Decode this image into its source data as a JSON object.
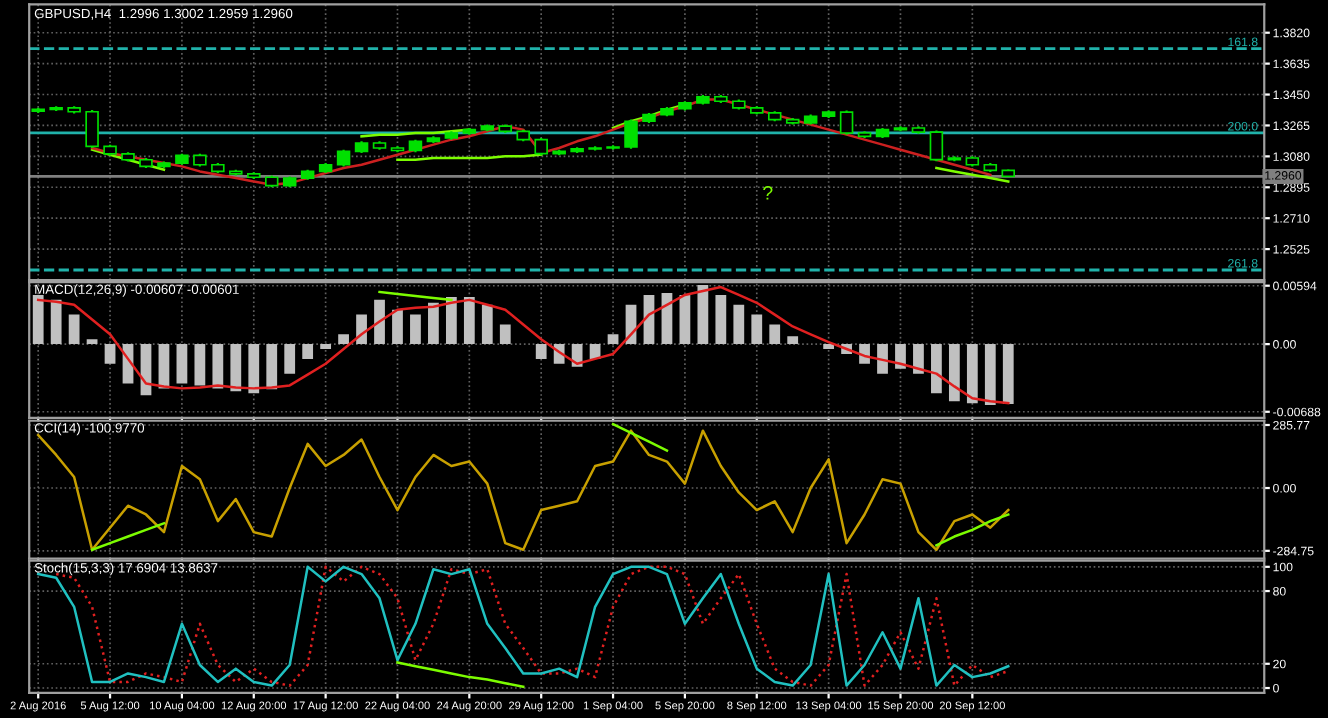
{
  "chart_data": [
    {
      "type": "candlestick",
      "title": "GBPUSD,H4  1.2996 1.3002 1.2959 1.2960",
      "color": "#00e000",
      "categories": [
        null,
        null,
        null,
        null,
        null,
        null,
        null,
        null,
        null,
        null,
        null,
        null,
        null,
        null,
        null,
        null,
        null,
        null,
        null,
        null,
        null,
        null,
        null,
        null,
        null,
        null,
        null,
        null,
        null,
        null,
        null,
        null,
        null,
        null,
        null,
        null,
        null,
        null,
        null,
        null,
        null,
        null,
        null,
        null,
        null,
        null,
        null,
        null,
        null,
        null,
        null,
        null,
        null,
        null,
        null
      ],
      "ohlc": [
        [
          1.335,
          1.3371,
          1.334,
          1.3361
        ],
        [
          1.3361,
          1.338,
          1.3351,
          1.337
        ],
        [
          1.337,
          1.338,
          1.3337,
          1.3347
        ],
        [
          1.3347,
          1.3357,
          1.313,
          1.314
        ],
        [
          1.314,
          1.315,
          1.3085,
          1.3095
        ],
        [
          1.3095,
          1.3105,
          1.305,
          1.306
        ],
        [
          1.306,
          1.307,
          1.301,
          1.302
        ],
        [
          1.302,
          1.305,
          1.301,
          1.304
        ],
        [
          1.304,
          1.3096,
          1.303,
          1.3086
        ],
        [
          1.3086,
          1.3096,
          1.302,
          1.303
        ],
        [
          1.303,
          1.304,
          1.298,
          1.299
        ],
        [
          1.299,
          1.3,
          1.2965,
          1.2975
        ],
        [
          1.2975,
          1.2985,
          1.2945,
          1.2955
        ],
        [
          1.2955,
          1.2965,
          1.2895,
          1.2905
        ],
        [
          1.2905,
          1.296,
          1.2895,
          1.295
        ],
        [
          1.295,
          1.3,
          1.294,
          1.299
        ],
        [
          1.299,
          1.304,
          1.298,
          1.303
        ],
        [
          1.303,
          1.312,
          1.302,
          1.311
        ],
        [
          1.311,
          1.317,
          1.31,
          1.316
        ],
        [
          1.316,
          1.317,
          1.312,
          1.313
        ],
        [
          1.313,
          1.314,
          1.3105,
          1.3115
        ],
        [
          1.3115,
          1.318,
          1.3105,
          1.317
        ],
        [
          1.317,
          1.32,
          1.316,
          1.319
        ],
        [
          1.319,
          1.323,
          1.318,
          1.322
        ],
        [
          1.322,
          1.325,
          1.321,
          1.324
        ],
        [
          1.324,
          1.3271,
          1.323,
          1.3261
        ],
        [
          1.3261,
          1.3271,
          1.322,
          1.323
        ],
        [
          1.323,
          1.324,
          1.317,
          1.318
        ],
        [
          1.318,
          1.319,
          1.3086,
          1.3096
        ],
        [
          1.3096,
          1.312,
          1.3086,
          1.311
        ],
        [
          1.311,
          1.3135,
          1.31,
          1.3125
        ],
        [
          1.3125,
          1.314,
          1.3115,
          1.313
        ],
        [
          1.313,
          1.3146,
          1.312,
          1.3136
        ],
        [
          1.3136,
          1.33,
          1.3126,
          1.329
        ],
        [
          1.329,
          1.334,
          1.328,
          1.333
        ],
        [
          1.333,
          1.3375,
          1.332,
          1.3365
        ],
        [
          1.3365,
          1.341,
          1.3355,
          1.34
        ],
        [
          1.34,
          1.3447,
          1.339,
          1.3437
        ],
        [
          1.3437,
          1.3447,
          1.34,
          1.341
        ],
        [
          1.341,
          1.342,
          1.336,
          1.337
        ],
        [
          1.337,
          1.338,
          1.333,
          1.334
        ],
        [
          1.334,
          1.335,
          1.329,
          1.33
        ],
        [
          1.33,
          1.331,
          1.327,
          1.328
        ],
        [
          1.328,
          1.333,
          1.327,
          1.332
        ],
        [
          1.332,
          1.3355,
          1.331,
          1.3345
        ],
        [
          1.3345,
          1.3355,
          1.321,
          1.322
        ],
        [
          1.322,
          1.323,
          1.319,
          1.32
        ],
        [
          1.32,
          1.325,
          1.319,
          1.324
        ],
        [
          1.324,
          1.326,
          1.323,
          1.325
        ],
        [
          1.325,
          1.326,
          1.3215,
          1.3225
        ],
        [
          1.3225,
          1.3235,
          1.3051,
          1.3061
        ],
        [
          1.3061,
          1.308,
          1.3051,
          1.307
        ],
        [
          1.307,
          1.308,
          1.302,
          1.303
        ],
        [
          1.303,
          1.304,
          1.2986,
          1.2996
        ],
        [
          1.2996,
          1.3002,
          1.2959,
          1.296
        ]
      ],
      "series": [
        {
          "type": "line",
          "color": "#7cfc00",
          "values": [
            null,
            null,
            null,
            1.312,
            1.309,
            1.306,
            1.303,
            1.3,
            null,
            null,
            null,
            null,
            null,
            null,
            null,
            null,
            null,
            null,
            null,
            null,
            null,
            null,
            null,
            null,
            null,
            null,
            null,
            null,
            null,
            null,
            null,
            null,
            null,
            null,
            null,
            null,
            null,
            null,
            null,
            null,
            null,
            null,
            null,
            null,
            null,
            null,
            null,
            null,
            null,
            null,
            null,
            null,
            null,
            null,
            null
          ]
        },
        {
          "type": "line",
          "color": "#7cfc00",
          "values": [
            null,
            null,
            null,
            null,
            null,
            null,
            null,
            null,
            null,
            null,
            null,
            null,
            null,
            null,
            null,
            null,
            null,
            null,
            1.32,
            1.321,
            1.321,
            1.322,
            1.322,
            1.323,
            1.324,
            null,
            null,
            null,
            null,
            null,
            null,
            null,
            null,
            null,
            null,
            null,
            null,
            null,
            null,
            null,
            null,
            null,
            null,
            null,
            null,
            null,
            null,
            null,
            null,
            null,
            null,
            null,
            null,
            null,
            null
          ]
        },
        {
          "type": "line",
          "color": "#7cfc00",
          "values": [
            null,
            null,
            null,
            null,
            null,
            null,
            null,
            null,
            null,
            null,
            null,
            null,
            null,
            null,
            null,
            null,
            null,
            null,
            null,
            null,
            1.306,
            1.306,
            1.307,
            1.307,
            1.307,
            1.307,
            1.308,
            1.308,
            1.309,
            null,
            null,
            null,
            null,
            null,
            null,
            null,
            null,
            null,
            null,
            null,
            null,
            null,
            null,
            null,
            null,
            null,
            null,
            null,
            null,
            null,
            null,
            null,
            null,
            null,
            null
          ]
        },
        {
          "type": "line",
          "color": "#7cfc00",
          "values": [
            null,
            null,
            null,
            null,
            null,
            null,
            null,
            null,
            null,
            null,
            null,
            null,
            null,
            null,
            null,
            null,
            null,
            null,
            null,
            null,
            null,
            null,
            null,
            null,
            null,
            null,
            null,
            null,
            null,
            null,
            null,
            null,
            1.325,
            1.329,
            1.332,
            1.336,
            1.339,
            null,
            null,
            null,
            null,
            null,
            null,
            null,
            null,
            null,
            null,
            null,
            null,
            null,
            null,
            null,
            null,
            null,
            null
          ]
        },
        {
          "type": "line",
          "color": "#7cfc00",
          "values": [
            null,
            null,
            null,
            null,
            null,
            null,
            null,
            null,
            null,
            null,
            null,
            null,
            null,
            null,
            null,
            null,
            null,
            null,
            null,
            null,
            null,
            null,
            null,
            null,
            null,
            null,
            null,
            null,
            null,
            null,
            null,
            null,
            null,
            null,
            null,
            null,
            null,
            null,
            null,
            null,
            null,
            null,
            null,
            null,
            null,
            null,
            null,
            null,
            null,
            null,
            1.301,
            1.299,
            1.297,
            1.295,
            1.293
          ]
        },
        {
          "type": "line",
          "color": "#cc2020",
          "values": [
            null,
            null,
            null,
            1.313,
            1.31,
            1.308,
            1.306,
            1.304,
            1.302,
            1.299,
            1.297,
            1.295,
            1.293,
            1.291,
            1.292,
            1.295,
            1.298,
            1.301,
            1.303,
            1.306,
            1.309,
            1.312,
            1.315,
            1.318,
            1.32,
            1.323,
            1.326,
            1.324,
            1.31,
            1.313,
            1.317,
            1.32,
            1.324,
            1.328,
            1.331,
            1.335,
            1.338,
            1.342,
            1.342,
            1.339,
            1.336,
            1.333,
            1.33,
            1.327,
            1.324,
            1.321,
            1.318,
            1.315,
            1.312,
            1.309,
            1.306,
            1.303,
            1.3,
            1.297,
            null
          ]
        }
      ],
      "ref_lines": [
        {
          "axis": "y",
          "value": 1.3725,
          "color": "#20b2aa",
          "line_style": "dashed"
        },
        {
          "axis": "y",
          "value": 1.322,
          "color": "#20b2aa",
          "line_style": "solid"
        },
        {
          "axis": "y",
          "value": 1.24,
          "color": "#20b2aa",
          "line_style": "dashed"
        },
        {
          "axis": "y",
          "value": 1.296,
          "label": "1.2960",
          "color": "#808080",
          "line_style": "solid"
        }
      ],
      "annotations": [
        {
          "text": "161.8",
          "y": 1.3725
        },
        {
          "text": "200.0",
          "y": 1.322
        },
        {
          "text": "261.8",
          "y": 1.24
        },
        "?"
      ],
      "ylim": [
        1.234,
        1.399
      ],
      "yticks": [
        {
          "value": 1.382,
          "label": "1.3820"
        },
        {
          "value": 1.3635,
          "label": "1.3635"
        },
        {
          "value": 1.345,
          "label": "1.3450"
        },
        {
          "value": 1.3265,
          "label": "1.3265"
        },
        {
          "value": 1.308,
          "label": "1.3080"
        },
        {
          "value": 1.2895,
          "label": "1.2895"
        },
        {
          "value": 1.271,
          "label": "1.2710"
        },
        {
          "value": 1.2525,
          "label": "1.2525"
        }
      ],
      "grid": true,
      "tick_labels": "y"
    },
    {
      "type": "bar",
      "title": "MACD(12,26,9) -0.00607 -0.00601",
      "categories": [
        null,
        null,
        null,
        null,
        null,
        null,
        null,
        null,
        null,
        null,
        null,
        null,
        null,
        null,
        null,
        null,
        null,
        null,
        null,
        null,
        null,
        null,
        null,
        null,
        null,
        null,
        null,
        null,
        null,
        null,
        null,
        null,
        null,
        null,
        null,
        null,
        null,
        null,
        null,
        null,
        null,
        null,
        null,
        null,
        null,
        null,
        null,
        null,
        null,
        null,
        null,
        null,
        null,
        null,
        null
      ],
      "series": [
        {
          "type": "bar",
          "color": "#c0c0c0",
          "values": [
            0.005,
            0.0045,
            0.003,
            0.0005,
            -0.002,
            -0.004,
            -0.0052,
            -0.0045,
            -0.004,
            -0.0042,
            -0.0045,
            -0.0048,
            -0.005,
            -0.0046,
            -0.003,
            -0.0015,
            -0.0005,
            0.001,
            0.003,
            0.0045,
            0.0035,
            0.003,
            0.0042,
            0.0048,
            0.0048,
            0.004,
            0.002,
            0.0,
            -0.0015,
            -0.002,
            -0.0023,
            -0.0015,
            0.001,
            0.004,
            0.005,
            0.0052,
            0.005,
            0.006,
            0.005,
            0.004,
            0.003,
            0.002,
            0.0008,
            0.0,
            -0.0005,
            -0.001,
            -0.002,
            -0.003,
            -0.0025,
            -0.003,
            -0.005,
            -0.0058,
            -0.006,
            -0.0062,
            -0.0061
          ]
        },
        {
          "type": "line",
          "color": "#e02020",
          "values": [
            0.0045,
            0.0043,
            0.004,
            0.0025,
            0.001,
            -0.0015,
            -0.004,
            -0.0043,
            -0.0045,
            -0.0044,
            -0.0042,
            -0.0044,
            -0.0045,
            -0.0044,
            -0.0042,
            -0.0031,
            -0.002,
            -0.0005,
            0.001,
            0.0023,
            0.0035,
            0.0037,
            0.0038,
            0.0042,
            0.0045,
            0.004,
            0.0035,
            0.002,
            0.0005,
            -0.0008,
            -0.002,
            -0.0015,
            -0.001,
            0.001,
            0.003,
            0.004,
            0.005,
            0.0054,
            0.0058,
            0.005,
            0.0042,
            0.003,
            0.0018,
            0.001,
            0.0002,
            -0.0005,
            -0.0012,
            -0.0016,
            -0.002,
            -0.0025,
            -0.003,
            -0.0043,
            -0.0055,
            -0.0058,
            -0.006
          ]
        },
        {
          "type": "line",
          "color": "#7cfc00",
          "values": [
            null,
            null,
            null,
            null,
            null,
            null,
            null,
            null,
            null,
            null,
            null,
            null,
            null,
            null,
            null,
            null,
            null,
            null,
            null,
            0.0053,
            0.0051,
            0.0049,
            0.0047,
            0.0045,
            null,
            null,
            null,
            null,
            null,
            null,
            null,
            null,
            null,
            null,
            null,
            null,
            null,
            null,
            null,
            null,
            null,
            null,
            null,
            null,
            null,
            null,
            null,
            null,
            null,
            null,
            null,
            null,
            null,
            null,
            null
          ]
        }
      ],
      "ylim": [
        -0.0075,
        0.0063
      ],
      "yticks": [
        0.00594,
        {
          "value": 0,
          "label": "0.00"
        },
        -0.00688
      ],
      "grid": true,
      "tick_labels": "y"
    },
    {
      "type": "line",
      "title": "CCI(14) -100.9770",
      "categories": [
        null,
        null,
        null,
        null,
        null,
        null,
        null,
        null,
        null,
        null,
        null,
        null,
        null,
        null,
        null,
        null,
        null,
        null,
        null,
        null,
        null,
        null,
        null,
        null,
        null,
        null,
        null,
        null,
        null,
        null,
        null,
        null,
        null,
        null,
        null,
        null,
        null,
        null,
        null,
        null,
        null,
        null,
        null,
        null,
        null,
        null,
        null,
        null,
        null,
        null,
        null,
        null,
        null,
        null,
        null
      ],
      "series": [
        {
          "type": "line",
          "color": "#c8a000",
          "values": [
            240,
            150,
            50,
            -280,
            -180,
            -80,
            -120,
            -200,
            100,
            40,
            -150,
            -50,
            -200,
            -220,
            0,
            200,
            100,
            150,
            220,
            50,
            -100,
            50,
            150,
            100,
            120,
            20,
            -250,
            -280,
            -100,
            -80,
            -60,
            100,
            120,
            260,
            150,
            120,
            20,
            260,
            100,
            -20,
            -100,
            -60,
            -200,
            0,
            130,
            -250,
            -120,
            40,
            20,
            -200,
            -280,
            -150,
            -120,
            -180,
            -100
          ]
        },
        {
          "type": "line",
          "color": "#7cfc00",
          "values": [
            null,
            null,
            null,
            -280,
            -250,
            -220,
            -190,
            -160,
            null,
            null,
            null,
            null,
            null,
            null,
            null,
            null,
            null,
            null,
            null,
            null,
            null,
            null,
            null,
            null,
            null,
            null,
            null,
            null,
            null,
            null,
            null,
            null,
            null,
            null,
            null,
            null,
            null,
            null,
            null,
            null,
            null,
            null,
            null,
            null,
            null,
            null,
            null,
            null,
            null,
            null,
            null,
            null,
            null,
            null,
            null
          ]
        },
        {
          "type": "line",
          "color": "#7cfc00",
          "values": [
            null,
            null,
            null,
            null,
            null,
            null,
            null,
            null,
            null,
            null,
            null,
            null,
            null,
            null,
            null,
            null,
            null,
            null,
            null,
            null,
            null,
            null,
            null,
            null,
            null,
            null,
            null,
            null,
            null,
            null,
            null,
            null,
            290,
            250,
            210,
            170,
            null,
            null,
            null,
            null,
            null,
            null,
            null,
            null,
            null,
            null,
            null,
            null,
            null,
            null,
            null,
            null,
            null,
            null,
            null
          ]
        },
        {
          "type": "line",
          "color": "#7cfc00",
          "values": [
            null,
            null,
            null,
            null,
            null,
            null,
            null,
            null,
            null,
            null,
            null,
            null,
            null,
            null,
            null,
            null,
            null,
            null,
            null,
            null,
            null,
            null,
            null,
            null,
            null,
            null,
            null,
            null,
            null,
            null,
            null,
            null,
            null,
            null,
            null,
            null,
            null,
            null,
            null,
            null,
            null,
            null,
            null,
            null,
            null,
            null,
            null,
            null,
            null,
            null,
            -260,
            -220,
            -190,
            -150,
            -120
          ]
        }
      ],
      "ylim": [
        -320,
        305
      ],
      "yticks": [
        285.77,
        {
          "value": 0,
          "label": "0.00"
        },
        -284.75
      ],
      "grid": true,
      "tick_labels": "y"
    },
    {
      "type": "line",
      "title": "Stoch(15,3,3) 17.6904 13.8637",
      "categories": [
        "2 Aug 2016",
        null,
        null,
        null,
        "5 Aug 12:00",
        null,
        null,
        null,
        "10 Aug 04:00",
        null,
        null,
        null,
        "12 Aug 20:00",
        null,
        null,
        null,
        "17 Aug 12:00",
        null,
        null,
        null,
        "22 Aug 04:00",
        null,
        null,
        null,
        "24 Aug 20:00",
        null,
        null,
        null,
        "29 Aug 12:00",
        null,
        null,
        null,
        "1 Sep 04:00",
        null,
        null,
        null,
        "5 Sep 20:00",
        null,
        null,
        null,
        "8 Sep 12:00",
        null,
        null,
        null,
        "13 Sep 04:00",
        null,
        null,
        null,
        "15 Sep 20:00",
        null,
        null,
        null,
        "20 Sep 12:00",
        null,
        null
      ],
      "series": [
        {
          "type": "line",
          "color": "#e02020",
          "line_style": "dotted",
          "values": [
            null,
            94,
            91,
            67,
            5,
            5,
            12,
            9,
            5,
            53,
            19,
            5,
            16,
            5,
            2,
            19,
            100,
            88,
            100,
            94,
            74,
            23,
            53,
            98,
            94,
            98,
            53,
            33,
            12,
            12,
            16,
            9,
            67,
            94,
            100,
            100,
            94,
            53,
            74,
            94,
            53,
            16,
            5,
            2,
            19,
            94,
            2,
            19,
            46,
            16,
            74,
            2,
            19,
            9,
            14
          ]
        },
        {
          "type": "line",
          "color": "#20c0c0",
          "values": [
            94,
            91,
            67,
            5,
            5,
            12,
            9,
            5,
            53,
            19,
            5,
            16,
            5,
            2,
            19,
            100,
            88,
            100,
            94,
            74,
            23,
            53,
            98,
            94,
            98,
            53,
            33,
            12,
            12,
            16,
            9,
            67,
            94,
            100,
            100,
            94,
            53,
            74,
            94,
            53,
            16,
            5,
            2,
            19,
            94,
            2,
            19,
            46,
            16,
            74,
            2,
            19,
            9,
            12,
            18
          ]
        },
        {
          "type": "line",
          "color": "#7cfc00",
          "values": [
            null,
            null,
            null,
            null,
            null,
            null,
            null,
            null,
            null,
            null,
            null,
            null,
            null,
            null,
            null,
            null,
            null,
            null,
            null,
            null,
            21,
            18,
            15,
            12,
            9,
            7,
            4,
            1,
            null,
            null,
            null,
            null,
            null,
            null,
            null,
            null,
            null,
            null,
            null,
            null,
            null,
            null,
            null,
            null,
            null,
            null,
            null,
            null,
            null,
            null,
            null,
            null,
            null,
            null,
            null
          ]
        }
      ],
      "ylim": [
        -4,
        105
      ],
      "yticks": [
        100,
        80,
        20,
        0
      ],
      "grid": true
    }
  ]
}
